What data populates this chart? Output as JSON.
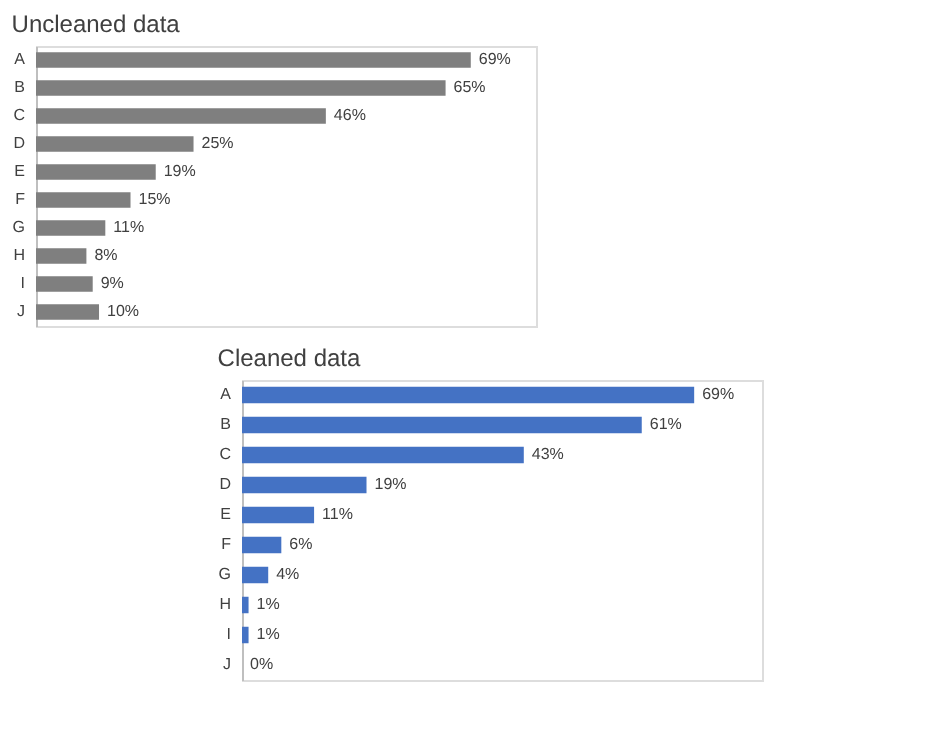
{
  "chart_data": [
    {
      "type": "bar",
      "orientation": "horizontal",
      "title": "Uncleaned data",
      "categories": [
        "A",
        "B",
        "C",
        "D",
        "E",
        "F",
        "G",
        "H",
        "I",
        "J"
      ],
      "values": [
        69,
        65,
        46,
        25,
        19,
        15,
        11,
        8,
        9,
        10
      ],
      "color": "#7f7f7f",
      "value_labels": [
        "69%",
        "65%",
        "46%",
        "25%",
        "19%",
        "15%",
        "11%",
        "8%",
        "9%",
        "10%"
      ]
    },
    {
      "type": "bar",
      "orientation": "horizontal",
      "title": "Cleaned data",
      "categories": [
        "A",
        "B",
        "C",
        "D",
        "E",
        "F",
        "G",
        "H",
        "I",
        "J"
      ],
      "values": [
        69,
        61,
        43,
        19,
        11,
        6,
        4,
        1,
        1,
        0
      ],
      "color": "#4472c4",
      "value_labels": [
        "69%",
        "61%",
        "43%",
        "19%",
        "11%",
        "6%",
        "4%",
        "1%",
        "1%",
        "0%"
      ]
    }
  ]
}
